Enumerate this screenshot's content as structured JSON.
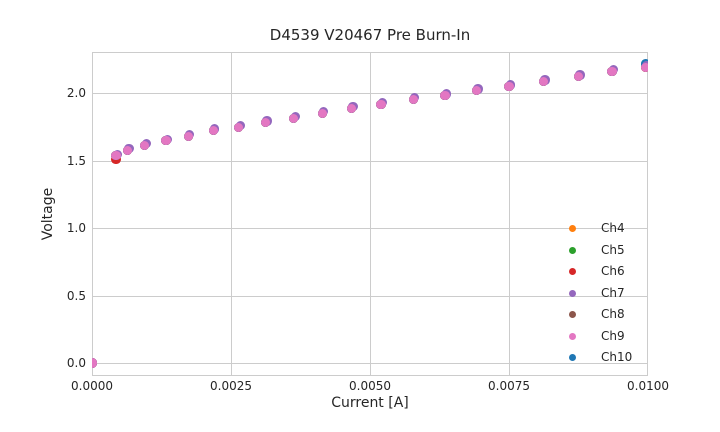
{
  "chart_data": {
    "type": "scatter",
    "title": "D4539 V20467 Pre Burn-In",
    "xlabel": "Current [A]",
    "ylabel": "Voltage",
    "xlim": [
      0,
      0.01
    ],
    "ylim": [
      -0.0963,
      2.3037
    ],
    "grid": true,
    "legend_position": "lower right",
    "grid_color": "#cccccc",
    "spine_color": "#cccccc",
    "text_color": "#262626",
    "background_color": "#ffffff",
    "xticks": {
      "values": [
        0,
        0.0025,
        0.005,
        0.0075,
        0.01
      ],
      "labels": [
        "0.0000",
        "0.0025",
        "0.0050",
        "0.0075",
        "0.0100"
      ]
    },
    "yticks": {
      "values": [
        0,
        0.5,
        1.0,
        1.5,
        2.0
      ],
      "labels": [
        "0.0",
        "0.5",
        "1.0",
        "1.5",
        "2.0"
      ]
    },
    "series": [
      {
        "name": "Ch4",
        "color": "#ff7f0e",
        "zorder": 1,
        "x": [
          0,
          0.00043,
          0.00064,
          0.00095,
          0.00133,
          0.00173,
          0.00218,
          0.00264,
          0.00312,
          0.00363,
          0.00414,
          0.00467,
          0.0052,
          0.00578,
          0.00635,
          0.00692,
          0.0075,
          0.00812,
          0.00875,
          0.00935,
          0.00995
        ],
        "y": [
          0,
          1.535,
          1.576,
          1.613,
          1.646,
          1.678,
          1.722,
          1.746,
          1.78,
          1.812,
          1.849,
          1.886,
          1.917,
          1.953,
          1.98,
          2.017,
          2.047,
          2.084,
          2.121,
          2.16,
          2.19
        ]
      },
      {
        "name": "Ch5",
        "color": "#2ca02c",
        "zorder": 2,
        "x": [
          0,
          0.00043,
          0.00064,
          0.00095,
          0.00133,
          0.00173,
          0.00218,
          0.00264,
          0.00312,
          0.00363,
          0.00414,
          0.00467,
          0.0052,
          0.00578,
          0.00635,
          0.00692,
          0.0075,
          0.00812,
          0.00875,
          0.00935,
          0.00995
        ],
        "y": [
          0,
          1.535,
          1.576,
          1.613,
          1.646,
          1.678,
          1.722,
          1.746,
          1.78,
          1.812,
          1.849,
          1.886,
          1.917,
          1.953,
          1.98,
          2.017,
          2.047,
          2.084,
          2.121,
          2.16,
          2.19
        ]
      },
      {
        "name": "Ch6",
        "color": "#d62728",
        "zorder": 3,
        "x": [
          0,
          0.00043,
          0.00064,
          0.00095,
          0.00133,
          0.00173,
          0.00218,
          0.00264,
          0.00312,
          0.00363,
          0.00414,
          0.00467,
          0.0052,
          0.00578,
          0.00635,
          0.00692,
          0.0075,
          0.00812,
          0.00875,
          0.00935,
          0.00995
        ],
        "y": [
          0,
          1.505,
          1.576,
          1.613,
          1.646,
          1.678,
          1.722,
          1.746,
          1.78,
          1.812,
          1.849,
          1.886,
          1.917,
          1.953,
          1.98,
          2.017,
          2.047,
          2.084,
          2.121,
          2.16,
          2.19
        ]
      },
      {
        "name": "Ch7",
        "color": "#9467bd",
        "zorder": 6,
        "x": [
          0,
          0.000455,
          0.000665,
          0.000975,
          0.001355,
          0.001755,
          0.002205,
          0.002665,
          0.003145,
          0.003655,
          0.004165,
          0.004695,
          0.005225,
          0.005805,
          0.006375,
          0.006945,
          0.007525,
          0.008145,
          0.008775,
          0.009375,
          0.009975
        ],
        "y": [
          0,
          1.547,
          1.588,
          1.625,
          1.658,
          1.69,
          1.734,
          1.758,
          1.792,
          1.824,
          1.861,
          1.898,
          1.929,
          1.965,
          1.992,
          2.029,
          2.059,
          2.096,
          2.133,
          2.172,
          2.202
        ]
      },
      {
        "name": "Ch8",
        "color": "#8c564b",
        "zorder": 4,
        "x": [
          0,
          0.00043,
          0.00064,
          0.00095,
          0.00133,
          0.00173,
          0.00218,
          0.00264,
          0.00312,
          0.00363,
          0.00414,
          0.00467,
          0.0052,
          0.00578,
          0.00635,
          0.00692,
          0.0075,
          0.00812,
          0.00875,
          0.00935,
          0.00995
        ],
        "y": [
          0,
          1.535,
          1.576,
          1.613,
          1.646,
          1.678,
          1.722,
          1.746,
          1.78,
          1.812,
          1.849,
          1.886,
          1.917,
          1.953,
          1.98,
          2.017,
          2.047,
          2.084,
          2.121,
          2.16,
          2.19
        ]
      },
      {
        "name": "Ch9",
        "color": "#e377c2",
        "zorder": 7,
        "x": [
          0,
          0.00043,
          0.00064,
          0.00095,
          0.00133,
          0.00173,
          0.00218,
          0.00264,
          0.00312,
          0.00363,
          0.00414,
          0.00467,
          0.0052,
          0.00578,
          0.00635,
          0.00692,
          0.0075,
          0.00812,
          0.00875,
          0.00935,
          0.00995
        ],
        "y": [
          0,
          1.535,
          1.576,
          1.613,
          1.646,
          1.678,
          1.722,
          1.746,
          1.78,
          1.812,
          1.849,
          1.886,
          1.917,
          1.953,
          1.98,
          2.017,
          2.047,
          2.084,
          2.121,
          2.16,
          2.19
        ]
      },
      {
        "name": "Ch10",
        "color": "#1f77b4",
        "zorder": 5,
        "x": [
          0,
          0.00043,
          0.00064,
          0.00095,
          0.00133,
          0.00173,
          0.00218,
          0.00264,
          0.00312,
          0.00363,
          0.00414,
          0.00467,
          0.0052,
          0.00578,
          0.00635,
          0.00692,
          0.0075,
          0.00812,
          0.00875,
          0.00935,
          0.00995
        ],
        "y": [
          0,
          1.535,
          1.576,
          1.613,
          1.646,
          1.678,
          1.722,
          1.746,
          1.78,
          1.812,
          1.849,
          1.886,
          1.917,
          1.953,
          1.98,
          2.017,
          2.047,
          2.084,
          2.121,
          2.16,
          2.214
        ]
      }
    ]
  }
}
